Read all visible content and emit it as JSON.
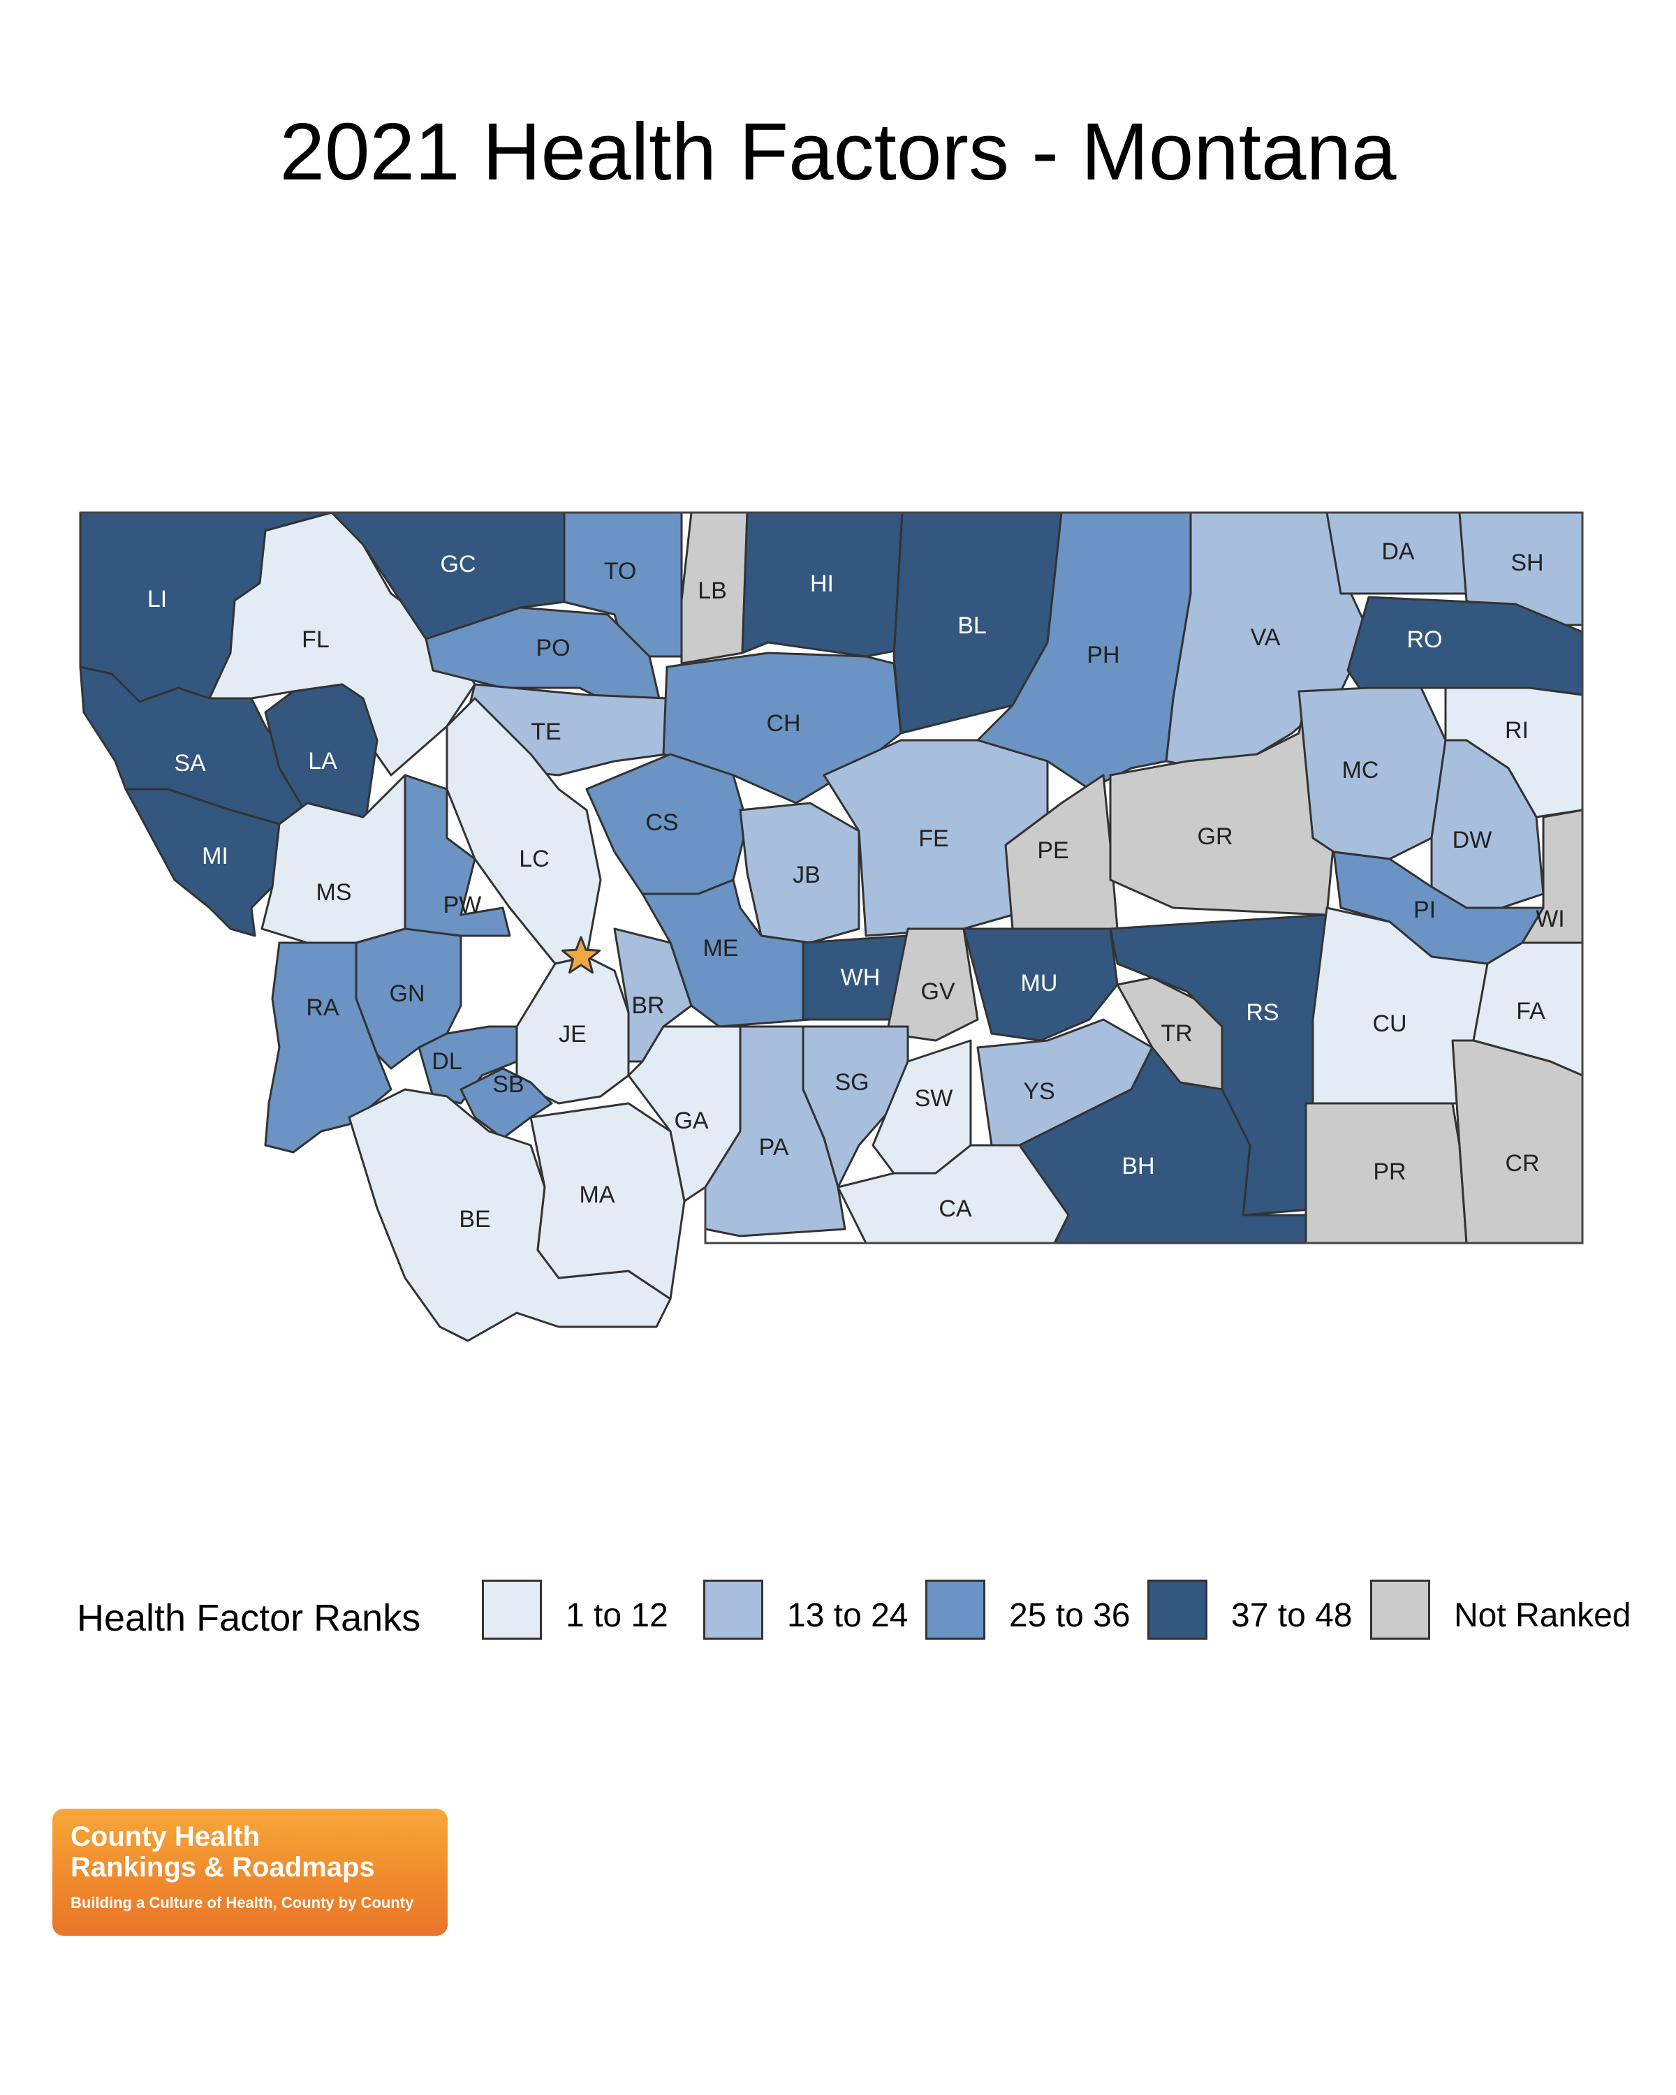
{
  "title": "2021 Health Factors - Montana",
  "legend": {
    "title": "Health Factor Ranks",
    "items": [
      {
        "label": "1 to 12",
        "color": "#e3ebf5"
      },
      {
        "label": "13 to 24",
        "color": "#a8bedd"
      },
      {
        "label": "25 to 36",
        "color": "#6b93c3"
      },
      {
        "label": "37 to 48",
        "color": "#34577f"
      },
      {
        "label": "Not Ranked",
        "color": "#cbcbcb"
      }
    ]
  },
  "counties": [
    {
      "code": "LI",
      "rank_group": 3
    },
    {
      "code": "FL",
      "rank_group": 0
    },
    {
      "code": "GC",
      "rank_group": 3
    },
    {
      "code": "TO",
      "rank_group": 2
    },
    {
      "code": "LB",
      "rank_group": 4
    },
    {
      "code": "HI",
      "rank_group": 3
    },
    {
      "code": "BL",
      "rank_group": 3
    },
    {
      "code": "PH",
      "rank_group": 2
    },
    {
      "code": "VA",
      "rank_group": 1
    },
    {
      "code": "DA",
      "rank_group": 1
    },
    {
      "code": "SH",
      "rank_group": 1
    },
    {
      "code": "RO",
      "rank_group": 3
    },
    {
      "code": "PO",
      "rank_group": 2
    },
    {
      "code": "TE",
      "rank_group": 1
    },
    {
      "code": "CH",
      "rank_group": 2
    },
    {
      "code": "SA",
      "rank_group": 3
    },
    {
      "code": "LA",
      "rank_group": 3
    },
    {
      "code": "MI",
      "rank_group": 3
    },
    {
      "code": "MS",
      "rank_group": 0
    },
    {
      "code": "LC",
      "rank_group": 0
    },
    {
      "code": "CS",
      "rank_group": 2
    },
    {
      "code": "JB",
      "rank_group": 1
    },
    {
      "code": "FE",
      "rank_group": 1
    },
    {
      "code": "PE",
      "rank_group": 4
    },
    {
      "code": "GR",
      "rank_group": 4
    },
    {
      "code": "MC",
      "rank_group": 1
    },
    {
      "code": "RI",
      "rank_group": 0
    },
    {
      "code": "DW",
      "rank_group": 1
    },
    {
      "code": "PW",
      "rank_group": 2
    },
    {
      "code": "ME",
      "rank_group": 2
    },
    {
      "code": "WH",
      "rank_group": 3
    },
    {
      "code": "GV",
      "rank_group": 4
    },
    {
      "code": "MU",
      "rank_group": 3
    },
    {
      "code": "PI",
      "rank_group": 2
    },
    {
      "code": "WI",
      "rank_group": 4
    },
    {
      "code": "RA",
      "rank_group": 2
    },
    {
      "code": "GN",
      "rank_group": 2
    },
    {
      "code": "JE",
      "rank_group": 0
    },
    {
      "code": "BR",
      "rank_group": 1
    },
    {
      "code": "TR",
      "rank_group": 4
    },
    {
      "code": "RS",
      "rank_group": 3
    },
    {
      "code": "CU",
      "rank_group": 0
    },
    {
      "code": "FA",
      "rank_group": 0
    },
    {
      "code": "DL",
      "rank_group": 2
    },
    {
      "code": "SB",
      "rank_group": 2
    },
    {
      "code": "SG",
      "rank_group": 1
    },
    {
      "code": "SW",
      "rank_group": 0
    },
    {
      "code": "YS",
      "rank_group": 1
    },
    {
      "code": "GA",
      "rank_group": 0
    },
    {
      "code": "PA",
      "rank_group": 1
    },
    {
      "code": "BH",
      "rank_group": 3
    },
    {
      "code": "BE",
      "rank_group": 0
    },
    {
      "code": "MA",
      "rank_group": 0
    },
    {
      "code": "CA",
      "rank_group": 0
    },
    {
      "code": "PR",
      "rank_group": 4
    },
    {
      "code": "CR",
      "rank_group": 4
    }
  ],
  "capital_marker_color": "#f2a640",
  "logo": {
    "line1": "County Health",
    "line2": "Rankings & Roadmaps",
    "tagline": "Building a Culture of Health, County by County"
  }
}
